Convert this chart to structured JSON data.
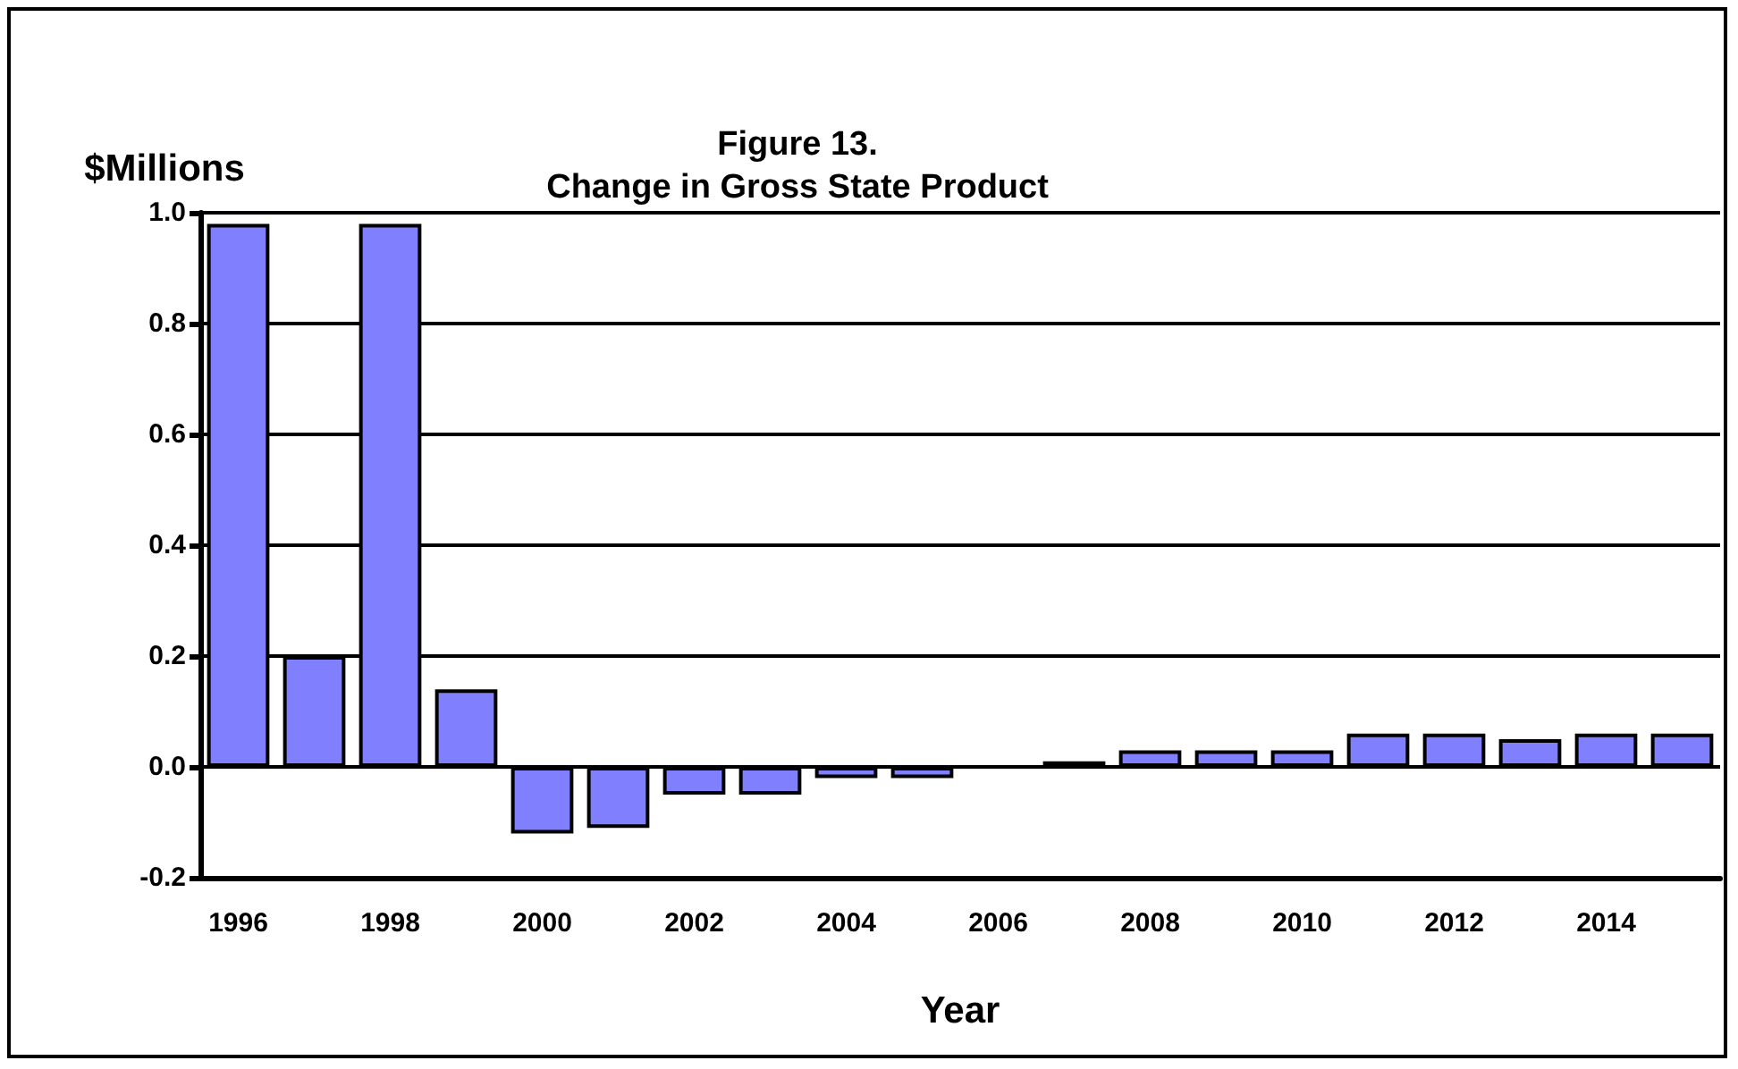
{
  "chart_data": {
    "type": "bar",
    "title": "Figure 13.\nChange in Gross State Product",
    "ylabel": "$Millions",
    "xlabel": "Year",
    "categories": [
      "1996",
      null,
      "1998",
      null,
      "2000",
      null,
      "2002",
      null,
      "2004",
      null,
      "2006",
      null,
      "2008",
      null,
      "2010",
      null,
      "2012",
      null,
      "2014",
      null
    ],
    "values": [
      0.98,
      0.2,
      0.98,
      0.14,
      -0.12,
      -0.11,
      -0.05,
      -0.05,
      -0.02,
      -0.02,
      null,
      0.01,
      0.03,
      0.03,
      0.03,
      0.06,
      0.06,
      0.05,
      0.06,
      0.06
    ],
    "color": "#8080ff",
    "ylim": [
      -0.2,
      1.0
    ],
    "yticks": [
      {
        "value": -0.2,
        "label": "-0.2"
      },
      {
        "value": 0,
        "label": "0.0"
      },
      {
        "value": 0.2,
        "label": "0.2"
      },
      {
        "value": 0.4,
        "label": "0.4"
      },
      {
        "value": 0.6,
        "label": "0.6"
      },
      {
        "value": 0.8,
        "label": "0.8"
      },
      {
        "value": 1.0,
        "label": "1.0"
      }
    ],
    "grid": "y"
  }
}
